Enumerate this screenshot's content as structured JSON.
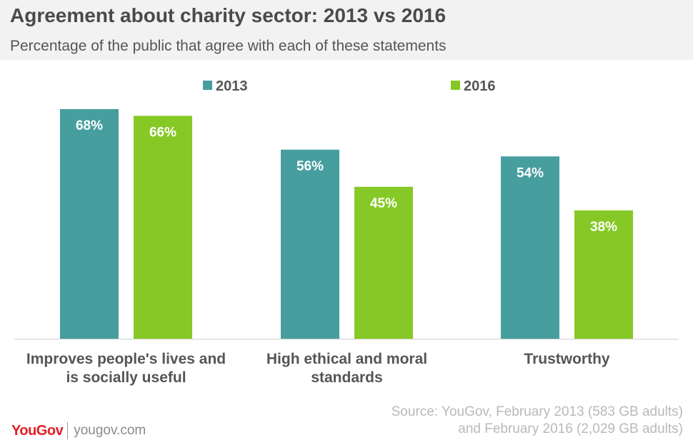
{
  "header": {
    "title": "Agreement about charity sector: 2013 vs 2016",
    "subtitle": "Percentage of the public that agree with each of these statements"
  },
  "chart_data": {
    "type": "bar",
    "categories": [
      [
        "Improves people's lives and",
        "is socially useful"
      ],
      [
        "High ethical and moral",
        "standards"
      ],
      [
        "Trustworthy"
      ]
    ],
    "series": [
      {
        "name": "2013",
        "color": "#479e9f",
        "values": [
          68,
          56,
          54
        ],
        "labels": [
          "68%",
          "56%",
          "54%"
        ]
      },
      {
        "name": "2016",
        "color": "#86c926",
        "values": [
          66,
          45,
          38
        ],
        "labels": [
          "66%",
          "45%",
          "38%"
        ]
      }
    ],
    "ylim": [
      0,
      68
    ],
    "grid": false,
    "legend_position": "top"
  },
  "footer": {
    "source_line1": "Source: YouGov, February 2013 (583 GB adults)",
    "source_line2": "and February 2016 (2,029 GB adults)",
    "logo_text": "YouGov",
    "site": "yougov.com"
  }
}
